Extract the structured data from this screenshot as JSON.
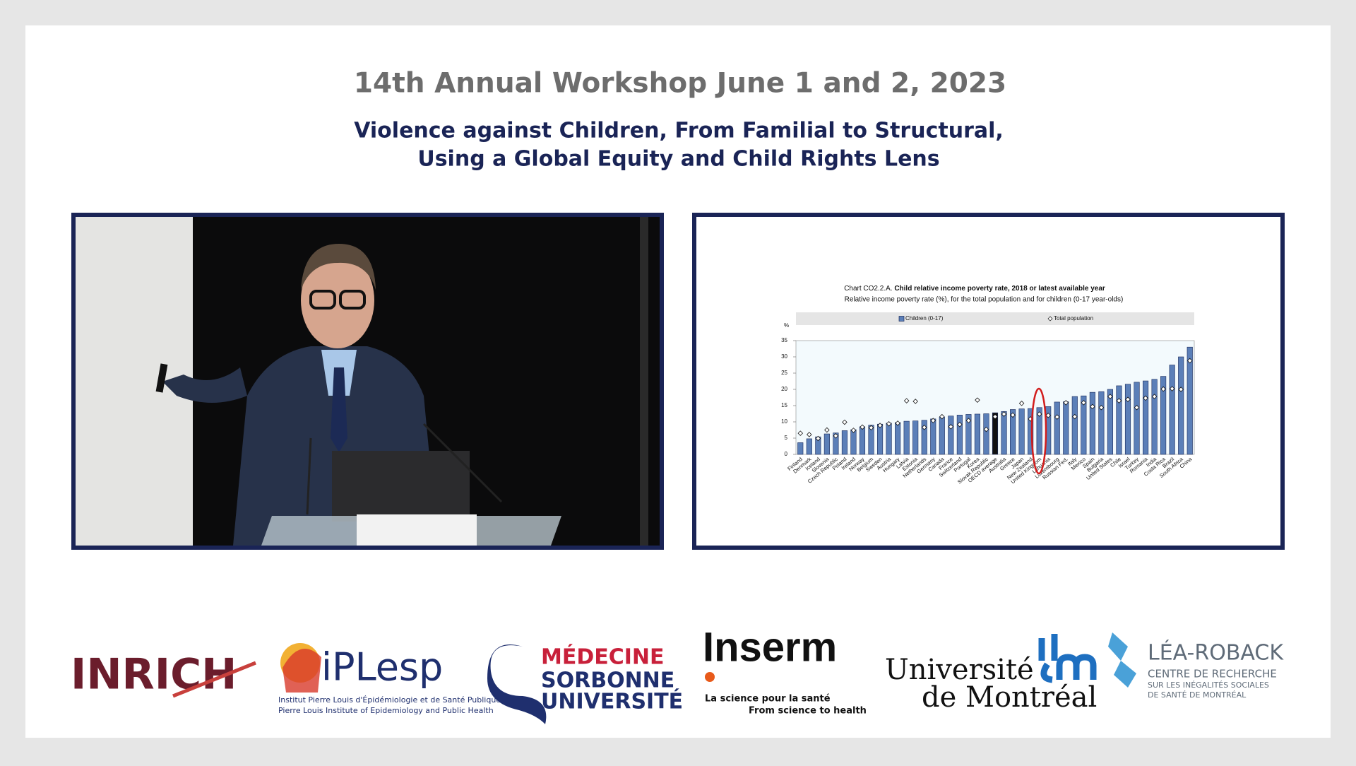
{
  "header": {
    "title": "14th Annual Workshop June 1 and 2, 2023",
    "subtitle_line1": "Violence against Children, From Familial to Structural,",
    "subtitle_line2": "Using a Global Equity and Child Rights Lens"
  },
  "chart_data": {
    "type": "bar",
    "title_prefix": "Chart CO2.2.A.",
    "title": "Child relative income poverty rate, 2018 or latest available year",
    "subtitle": "Relative income poverty rate (%), for the total population and for children (0-17 year-olds)",
    "y_unit": "%",
    "categories": [
      "Finland",
      "Denmark",
      "Iceland",
      "Slovenia",
      "Czech Republic",
      "Poland",
      "Ireland",
      "Norway",
      "Belgium",
      "Sweden",
      "Austria",
      "Hungary",
      "Latvia",
      "Estonia",
      "Netherlands",
      "Germany",
      "Canada",
      "France",
      "Switzerland",
      "Portugal",
      "Korea",
      "Slovak Republic",
      "OECD average",
      "Australia",
      "Greece",
      "Japan",
      "New Zealand",
      "United Kingdom",
      "Lithuania",
      "Luxembourg",
      "Russian Fed.",
      "Italy",
      "Mexico",
      "Spain",
      "Bulgaria",
      "United States",
      "Chile",
      "Israel",
      "Turkey",
      "Romania",
      "India",
      "Costa Rica",
      "Brazil",
      "South Africa",
      "China"
    ],
    "series": [
      {
        "name": "Children (0-17)",
        "color": "#5b7fb8",
        "values": [
          3.6,
          4.8,
          5.4,
          6.3,
          6.6,
          7.3,
          7.6,
          8.5,
          9.0,
          9.3,
          9.6,
          9.8,
          10.2,
          10.3,
          10.5,
          10.9,
          11.5,
          11.8,
          12.1,
          12.3,
          12.4,
          12.5,
          12.8,
          13.2,
          13.8,
          14.0,
          14.1,
          14.4,
          14.7,
          16.1,
          16.2,
          17.8,
          18.0,
          19.1,
          19.3,
          20.0,
          21.1,
          21.6,
          22.2,
          22.6,
          23.1,
          24.0,
          27.5,
          30.0,
          33.0
        ]
      },
      {
        "name": "Total population",
        "color": "#ffffff",
        "marker": "diamond",
        "values": [
          6.5,
          6.1,
          4.9,
          7.5,
          5.7,
          9.9,
          7.4,
          8.4,
          8.2,
          8.9,
          9.4,
          9.6,
          16.5,
          16.3,
          8.3,
          10.4,
          11.6,
          8.5,
          9.2,
          10.4,
          16.7,
          7.7,
          11.6,
          12.4,
          12.1,
          15.7,
          10.9,
          12.4,
          12.0,
          11.5,
          15.9,
          11.6,
          15.9,
          14.7,
          14.4,
          17.8,
          16.5,
          16.9,
          14.4,
          17.3,
          17.8,
          20.1,
          20.2,
          20.0,
          28.8
        ]
      }
    ],
    "highlight": {
      "category": "OECD average",
      "color": "#111111"
    },
    "ylim": [
      0,
      35
    ],
    "yticks": [
      0,
      5,
      10,
      15,
      20,
      25,
      30,
      35
    ],
    "grid": false
  },
  "logos": {
    "inrich": "INRICH",
    "iplesp": "iPLesp",
    "iplesp_fr": "Institut Pierre Louis d'Épidémiologie et de Santé Publique",
    "iplesp_en": "Pierre Louis Institute of Epidemiology and Public Health",
    "sorbonne_1": "MÉDECINE",
    "sorbonne_2": "SORBONNE",
    "sorbonne_3": "UNIVERSITÉ",
    "inserm": "Inserm",
    "inserm_fr": "La science pour la santé",
    "inserm_en": "From science to health",
    "udem_1": "Université",
    "udem_2": "de Montréal",
    "lea_1": "LÉA-ROBACK",
    "lea_2": "CENTRE DE RECHERCHE",
    "lea_3": "SUR LES INÉGALITÉS SOCIALES",
    "lea_4": "DE SANTÉ DE MONTRÉAL"
  }
}
